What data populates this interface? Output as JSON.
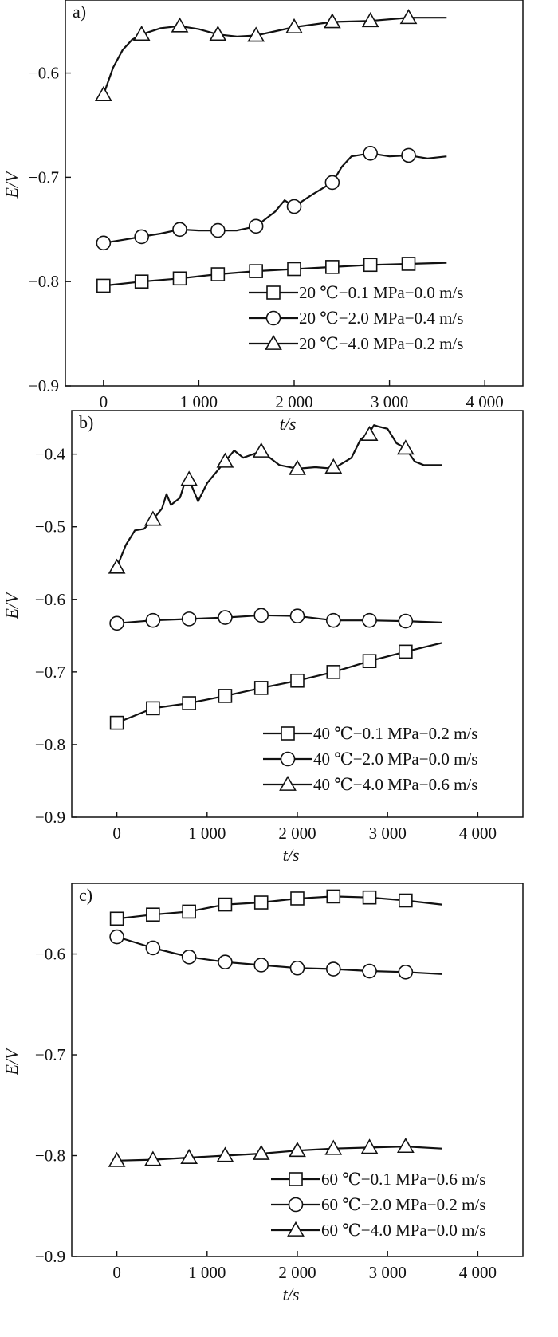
{
  "chart_data": [
    {
      "type": "line",
      "panel_label": "a)",
      "xlabel": "t/s",
      "ylabel": "E/V",
      "xlim": [
        -400,
        4400
      ],
      "ylim": [
        -0.9,
        -0.53
      ],
      "xticks": [
        0,
        1000,
        2000,
        3000,
        4000
      ],
      "xtick_labels": [
        "0",
        "1 000",
        "2 000",
        "3 000",
        "4 000"
      ],
      "yticks": [
        -0.9,
        -0.8,
        -0.7,
        -0.6
      ],
      "ytick_labels": [
        "−0.9",
        "−0.8",
        "−0.7",
        "−0.6"
      ],
      "grid": false,
      "legend_position": "bottom-right",
      "series": [
        {
          "name": "20 ℃−0.1 MPa−0.0 m/s",
          "marker": "square",
          "x": [
            0,
            400,
            800,
            1200,
            1600,
            2000,
            2400,
            2800,
            3200,
            3600
          ],
          "y": [
            -0.804,
            -0.8,
            -0.797,
            -0.793,
            -0.79,
            -0.788,
            -0.786,
            -0.784,
            -0.783,
            -0.782
          ],
          "markers_x": [
            0,
            400,
            800,
            1200,
            1600,
            2000,
            2400,
            2800,
            3200
          ],
          "markers_y": [
            -0.804,
            -0.8,
            -0.797,
            -0.793,
            -0.79,
            -0.788,
            -0.786,
            -0.784,
            -0.783
          ]
        },
        {
          "name": "20 ℃−2.0 MPa−0.4 m/s",
          "marker": "circle",
          "x": [
            0,
            200,
            400,
            600,
            800,
            1000,
            1200,
            1400,
            1600,
            1800,
            1900,
            2000,
            2200,
            2400,
            2500,
            2600,
            2800,
            3000,
            3200,
            3400,
            3600
          ],
          "y": [
            -0.763,
            -0.76,
            -0.757,
            -0.754,
            -0.75,
            -0.751,
            -0.751,
            -0.751,
            -0.747,
            -0.733,
            -0.722,
            -0.728,
            -0.716,
            -0.705,
            -0.69,
            -0.68,
            -0.677,
            -0.68,
            -0.679,
            -0.682,
            -0.68
          ],
          "markers_x": [
            0,
            400,
            800,
            1200,
            1600,
            2000,
            2400,
            2800,
            3200
          ],
          "markers_y": [
            -0.763,
            -0.757,
            -0.75,
            -0.751,
            -0.747,
            -0.728,
            -0.705,
            -0.677,
            -0.679
          ]
        },
        {
          "name": "20 ℃−4.0 MPa−0.2 m/s",
          "marker": "triangle",
          "x": [
            0,
            100,
            200,
            300,
            400,
            600,
            800,
            1000,
            1200,
            1400,
            1600,
            2000,
            2400,
            2800,
            3200,
            3600
          ],
          "y": [
            -0.621,
            -0.595,
            -0.578,
            -0.568,
            -0.563,
            -0.557,
            -0.555,
            -0.558,
            -0.563,
            -0.565,
            -0.564,
            -0.556,
            -0.551,
            -0.55,
            -0.547,
            -0.547
          ],
          "markers_x": [
            0,
            400,
            800,
            1200,
            1600,
            2000,
            2400,
            2800,
            3200
          ],
          "markers_y": [
            -0.621,
            -0.563,
            -0.555,
            -0.563,
            -0.564,
            -0.556,
            -0.551,
            -0.55,
            -0.547
          ]
        }
      ]
    },
    {
      "type": "line",
      "panel_label": "b)",
      "xlabel": "t/s",
      "ylabel": "E/V",
      "xlim": [
        -500,
        4500
      ],
      "ylim": [
        -0.9,
        -0.34
      ],
      "xticks": [
        0,
        1000,
        2000,
        3000,
        4000
      ],
      "xtick_labels": [
        "0",
        "1 000",
        "2 000",
        "3 000",
        "4 000"
      ],
      "yticks": [
        -0.9,
        -0.8,
        -0.7,
        -0.6,
        -0.5,
        -0.4
      ],
      "ytick_labels": [
        "−0.9",
        "−0.8",
        "−0.7",
        "−0.6",
        "−0.5",
        "−0.4"
      ],
      "grid": false,
      "legend_position": "bottom-right",
      "series": [
        {
          "name": "40 ℃−0.1 MPa−0.2 m/s",
          "marker": "square",
          "x": [
            0,
            400,
            800,
            1200,
            1600,
            2000,
            2400,
            2800,
            3200,
            3600
          ],
          "y": [
            -0.77,
            -0.75,
            -0.743,
            -0.733,
            -0.722,
            -0.712,
            -0.7,
            -0.685,
            -0.672,
            -0.66
          ],
          "markers_x": [
            0,
            400,
            800,
            1200,
            1600,
            2000,
            2400,
            2800,
            3200
          ],
          "markers_y": [
            -0.77,
            -0.75,
            -0.743,
            -0.733,
            -0.722,
            -0.712,
            -0.7,
            -0.685,
            -0.672
          ]
        },
        {
          "name": "40 ℃−2.0 MPa−0.0 m/s",
          "marker": "circle",
          "x": [
            0,
            400,
            800,
            1200,
            1600,
            2000,
            2400,
            2800,
            3200,
            3600
          ],
          "y": [
            -0.633,
            -0.629,
            -0.627,
            -0.625,
            -0.622,
            -0.623,
            -0.629,
            -0.629,
            -0.63,
            -0.632
          ],
          "markers_x": [
            0,
            400,
            800,
            1200,
            1600,
            2000,
            2400,
            2800,
            3200
          ],
          "markers_y": [
            -0.633,
            -0.629,
            -0.627,
            -0.625,
            -0.622,
            -0.623,
            -0.629,
            -0.629,
            -0.63
          ]
        },
        {
          "name": "40 ℃−4.0 MPa−0.6 m/s",
          "marker": "triangle",
          "x": [
            0,
            100,
            200,
            300,
            400,
            500,
            550,
            600,
            700,
            750,
            800,
            850,
            900,
            1000,
            1100,
            1200,
            1300,
            1400,
            1600,
            1800,
            2000,
            2200,
            2400,
            2600,
            2700,
            2800,
            2850,
            2900,
            3000,
            3100,
            3200,
            3300,
            3400,
            3600
          ],
          "y": [
            -0.556,
            -0.525,
            -0.505,
            -0.503,
            -0.49,
            -0.475,
            -0.455,
            -0.47,
            -0.46,
            -0.44,
            -0.435,
            -0.45,
            -0.465,
            -0.44,
            -0.425,
            -0.41,
            -0.395,
            -0.405,
            -0.396,
            -0.415,
            -0.42,
            -0.418,
            -0.42,
            -0.405,
            -0.38,
            -0.37,
            -0.36,
            -0.362,
            -0.365,
            -0.385,
            -0.392,
            -0.41,
            -0.415,
            -0.415
          ],
          "markers_x": [
            0,
            400,
            800,
            1200,
            1600,
            2000,
            2400,
            2800,
            3200
          ],
          "markers_y": [
            -0.556,
            -0.49,
            -0.435,
            -0.41,
            -0.396,
            -0.42,
            -0.418,
            -0.373,
            -0.392
          ]
        }
      ]
    },
    {
      "type": "line",
      "panel_label": "c)",
      "xlabel": "t/s",
      "ylabel": "E/V",
      "xlim": [
        -500,
        4500
      ],
      "ylim": [
        -0.9,
        -0.53
      ],
      "xticks": [
        0,
        1000,
        2000,
        3000,
        4000
      ],
      "xtick_labels": [
        "0",
        "1 000",
        "2 000",
        "3 000",
        "4 000"
      ],
      "yticks": [
        -0.9,
        -0.8,
        -0.7,
        -0.6
      ],
      "ytick_labels": [
        "−0.9",
        "−0.8",
        "−0.7",
        "−0.6"
      ],
      "grid": false,
      "legend_position": "bottom-right",
      "series": [
        {
          "name": "60 ℃−0.1 MPa−0.6 m/s",
          "marker": "square",
          "x": [
            0,
            400,
            800,
            1200,
            1600,
            2000,
            2400,
            2800,
            3200,
            3600
          ],
          "y": [
            -0.565,
            -0.561,
            -0.558,
            -0.551,
            -0.549,
            -0.545,
            -0.543,
            -0.544,
            -0.547,
            -0.551
          ],
          "markers_x": [
            0,
            400,
            800,
            1200,
            1600,
            2000,
            2400,
            2800,
            3200
          ],
          "markers_y": [
            -0.565,
            -0.561,
            -0.558,
            -0.551,
            -0.549,
            -0.545,
            -0.543,
            -0.544,
            -0.547
          ]
        },
        {
          "name": "60 ℃−2.0 MPa−0.2 m/s",
          "marker": "circle",
          "x": [
            0,
            400,
            800,
            1200,
            1600,
            2000,
            2400,
            2800,
            3200,
            3600
          ],
          "y": [
            -0.583,
            -0.594,
            -0.603,
            -0.608,
            -0.611,
            -0.614,
            -0.615,
            -0.617,
            -0.618,
            -0.62
          ],
          "markers_x": [
            0,
            400,
            800,
            1200,
            1600,
            2000,
            2400,
            2800,
            3200
          ],
          "markers_y": [
            -0.583,
            -0.594,
            -0.603,
            -0.608,
            -0.611,
            -0.614,
            -0.615,
            -0.617,
            -0.618
          ]
        },
        {
          "name": "60 ℃−4.0 MPa−0.0 m/s",
          "marker": "triangle",
          "x": [
            0,
            400,
            800,
            1200,
            1600,
            2000,
            2400,
            2800,
            3200,
            3600
          ],
          "y": [
            -0.805,
            -0.804,
            -0.802,
            -0.8,
            -0.798,
            -0.795,
            -0.793,
            -0.792,
            -0.791,
            -0.793
          ],
          "markers_x": [
            0,
            400,
            800,
            1200,
            1600,
            2000,
            2400,
            2800,
            3200
          ],
          "markers_y": [
            -0.805,
            -0.804,
            -0.802,
            -0.8,
            -0.798,
            -0.795,
            -0.793,
            -0.792,
            -0.791
          ]
        }
      ]
    }
  ]
}
